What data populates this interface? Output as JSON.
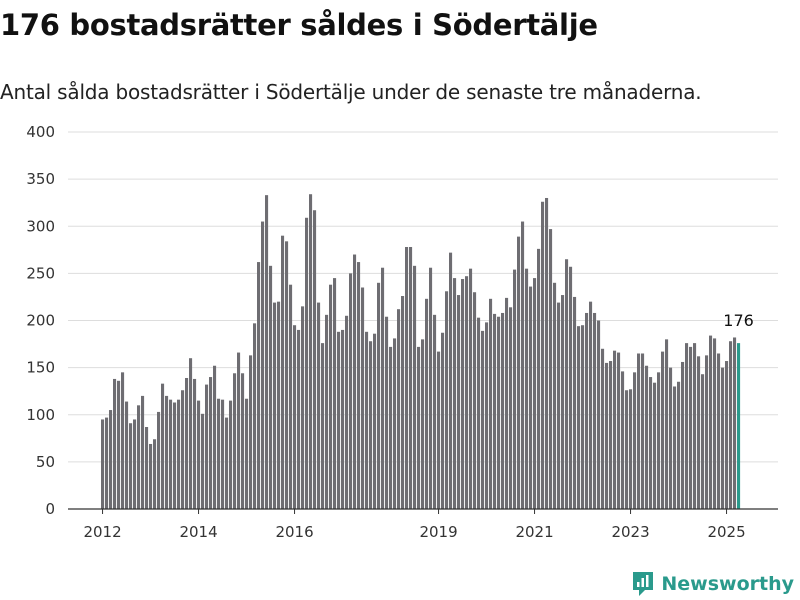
{
  "header": {
    "title": "176 bostadsrätter såldes i Södertälje",
    "subtitle": "Antal sålda bostadsrätter i Södertälje under de senaste tre månaderna."
  },
  "brand": {
    "name": "Newsworthy",
    "logo_icon": "newsworthy-logo-icon",
    "color": "#2a9a8c"
  },
  "colors": {
    "bar": "#6e6d72",
    "highlight": "#2a9a8c",
    "grid": "#dddddd"
  },
  "chart_data": {
    "type": "bar",
    "title": "176 bostadsrätter såldes i Södertälje",
    "subtitle": "Antal sålda bostadsrätter i Södertälje under de senaste tre månaderna.",
    "xlabel": "",
    "ylabel": "",
    "ylim": [
      0,
      400
    ],
    "yticks": [
      0,
      50,
      100,
      150,
      200,
      250,
      300,
      350,
      400
    ],
    "xticks": [
      "2012",
      "2014",
      "2016",
      "2019",
      "2021",
      "2023",
      "2025"
    ],
    "grid": true,
    "values": [
      95,
      97,
      105,
      138,
      136,
      145,
      114,
      91,
      95,
      110,
      120,
      87,
      69,
      74,
      103,
      133,
      120,
      116,
      113,
      116,
      126,
      139,
      160,
      138,
      115,
      101,
      132,
      140,
      152,
      117,
      116,
      97,
      115,
      144,
      166,
      144,
      117,
      163,
      197,
      262,
      305,
      333,
      258,
      219,
      220,
      290,
      284,
      238,
      195,
      190,
      215,
      309,
      334,
      317,
      219,
      176,
      206,
      238,
      245,
      188,
      190,
      205,
      250,
      270,
      262,
      235,
      188,
      178,
      186,
      240,
      256,
      204,
      172,
      181,
      212,
      226,
      278,
      278,
      258,
      172,
      180,
      223,
      256,
      206,
      167,
      187,
      231,
      272,
      245,
      227,
      244,
      247,
      255,
      230,
      203,
      189,
      198,
      223,
      207,
      204,
      208,
      224,
      214,
      254,
      289,
      305,
      255,
      236,
      245,
      276,
      326,
      330,
      297,
      240,
      219,
      227,
      265,
      257,
      225,
      194,
      195,
      208,
      220,
      208,
      200,
      170,
      155,
      157,
      168,
      166,
      146,
      126,
      127,
      145,
      165,
      165,
      152,
      140,
      134,
      145,
      167,
      180,
      150,
      130,
      135,
      156,
      176,
      172,
      176,
      162,
      143,
      163,
      184,
      181,
      165,
      150,
      157,
      178,
      182,
      176
    ],
    "highlight_last": 1,
    "annotation": {
      "text": "176",
      "value": 176
    }
  }
}
